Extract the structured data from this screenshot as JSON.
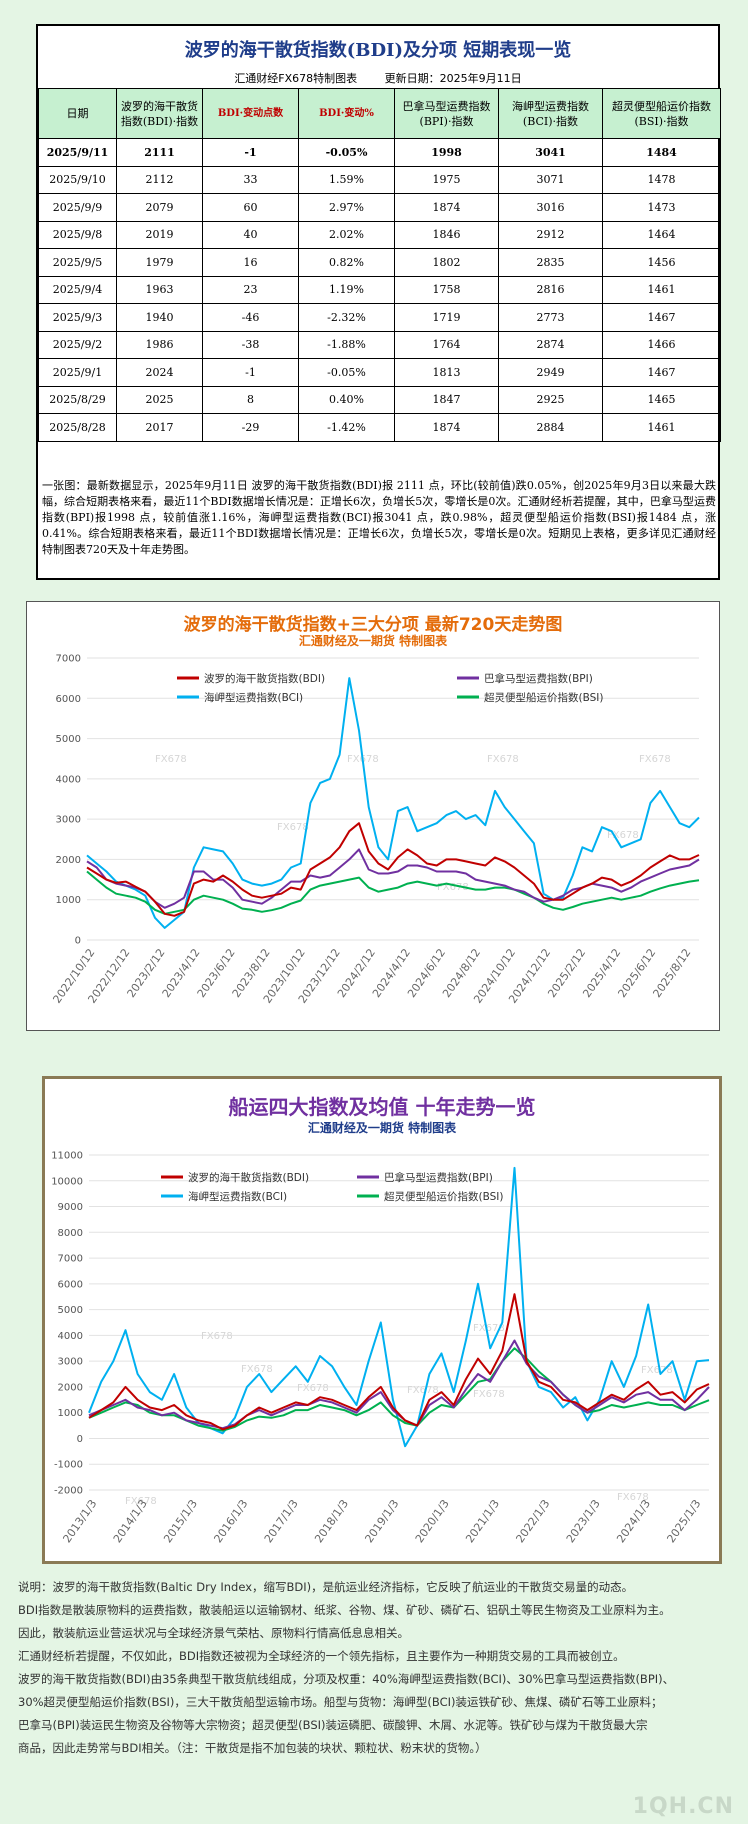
{
  "table_panel": {
    "title": "波罗的海干散货指数(BDI)及分项 短期表现一览",
    "subtitle_left": "汇通财经FX678特制图表",
    "subtitle_right": "更新日期：2025年9月11日",
    "headers": [
      "日期",
      "波罗的海干散货指数(BDI)·指数",
      "BDI·变动点数",
      "BDI·变动%",
      "巴拿马型运费指数(BPI)·指数",
      "海岬型运费指数(BCI)·指数",
      "超灵便型船运价指数(BSI)·指数"
    ],
    "rows": [
      [
        "2025/9/11",
        "2111",
        "-1",
        "-0.05%",
        "1998",
        "3041",
        "1484"
      ],
      [
        "2025/9/10",
        "2112",
        "33",
        "1.59%",
        "1975",
        "3071",
        "1478"
      ],
      [
        "2025/9/9",
        "2079",
        "60",
        "2.97%",
        "1874",
        "3016",
        "1473"
      ],
      [
        "2025/9/8",
        "2019",
        "40",
        "2.02%",
        "1846",
        "2912",
        "1464"
      ],
      [
        "2025/9/5",
        "1979",
        "16",
        "0.82%",
        "1802",
        "2835",
        "1456"
      ],
      [
        "2025/9/4",
        "1963",
        "23",
        "1.19%",
        "1758",
        "2816",
        "1461"
      ],
      [
        "2025/9/3",
        "1940",
        "-46",
        "-2.32%",
        "1719",
        "2773",
        "1467"
      ],
      [
        "2025/9/2",
        "1986",
        "-38",
        "-1.88%",
        "1764",
        "2874",
        "1466"
      ],
      [
        "2025/9/1",
        "2024",
        "-1",
        "-0.05%",
        "1813",
        "2949",
        "1467"
      ],
      [
        "2025/8/29",
        "2025",
        "8",
        "0.40%",
        "1847",
        "2925",
        "1465"
      ],
      [
        "2025/8/28",
        "2017",
        "-29",
        "-1.42%",
        "1874",
        "2884",
        "1461"
      ]
    ],
    "note": "一张图：最新数据显示，2025年9月11日 波罗的海干散货指数(BDI)报 2111 点，环比(较前值)跌0.05%，创2025年9月3日以来最大跌幅，综合短期表格来看，最近11个BDI数据增长情况是：正增长6次，负增长5次，零增长是0次。汇通财经析若提醒，其中，巴拿马型运费指数(BPI)报1998 点，较前值涨1.16%，海岬型运费指数(BCI)报3041 点，跌0.98%，超灵便型船运价指数(BSI)报1484 点，涨0.41%。综合短期表格来看，最近11个BDI数据增长情况是：正增长6次，负增长5次，零增长是0次。短期见上表格，更多详见汇通财经特制图表720天及十年走势图。"
  },
  "chart_data": [
    {
      "type": "line",
      "title": "波罗的海干散货指数+三大分项 最新720天走势图",
      "subtitle": "汇通财经及一期货 特制图表",
      "watermark": "FX678",
      "ylim": [
        0,
        7000
      ],
      "yticks": [
        0,
        1000,
        2000,
        3000,
        4000,
        5000,
        6000,
        7000
      ],
      "grid": true,
      "legend_position": "top",
      "x_tick_labels": [
        "2022/10/12",
        "2022/12/12",
        "2023/2/12",
        "2023/4/12",
        "2023/6/12",
        "2023/8/12",
        "2023/10/12",
        "2023/12/12",
        "2024/2/12",
        "2024/4/12",
        "2024/6/12",
        "2024/8/12",
        "2024/10/12",
        "2024/12/12",
        "2025/2/12",
        "2025/4/12",
        "2025/6/12",
        "2025/8/12"
      ],
      "colors": {
        "BDI": "#c00000",
        "BPI": "#7030a0",
        "BCI": "#00b0f0",
        "BSI": "#00b050"
      },
      "series": [
        {
          "name": "波罗的海干散货指数(BDI)",
          "key": "BDI",
          "values": [
            1800,
            1650,
            1500,
            1420,
            1450,
            1320,
            1200,
            950,
            650,
            600,
            700,
            1400,
            1500,
            1450,
            1600,
            1450,
            1250,
            1100,
            1050,
            1100,
            1150,
            1300,
            1250,
            1750,
            1900,
            2050,
            2300,
            2700,
            2900,
            2200,
            1900,
            1750,
            2050,
            2250,
            2100,
            1900,
            1850,
            2000,
            2000,
            1950,
            1900,
            1850,
            2050,
            1950,
            1800,
            1600,
            1400,
            1050,
            1000,
            1000,
            1150,
            1300,
            1400,
            1550,
            1500,
            1350,
            1450,
            1600,
            1800,
            1950,
            2100,
            2000,
            2000,
            2111
          ]
        },
        {
          "name": "巴拿马型运费指数(BPI)",
          "key": "BPI",
          "values": [
            1950,
            1800,
            1500,
            1400,
            1350,
            1300,
            1200,
            950,
            800,
            900,
            1050,
            1700,
            1700,
            1500,
            1500,
            1300,
            1000,
            950,
            900,
            1050,
            1250,
            1450,
            1450,
            1600,
            1550,
            1600,
            1800,
            2000,
            2250,
            1750,
            1650,
            1650,
            1700,
            1850,
            1850,
            1800,
            1700,
            1700,
            1700,
            1650,
            1500,
            1450,
            1400,
            1350,
            1250,
            1200,
            1050,
            950,
            1000,
            1100,
            1250,
            1300,
            1400,
            1350,
            1300,
            1200,
            1300,
            1450,
            1550,
            1650,
            1750,
            1800,
            1850,
            1998
          ]
        },
        {
          "name": "海岬型运费指数(BCI)",
          "key": "BCI",
          "values": [
            2100,
            1900,
            1700,
            1450,
            1350,
            1250,
            1100,
            550,
            300,
            500,
            700,
            1800,
            2300,
            2250,
            2200,
            1900,
            1500,
            1400,
            1350,
            1400,
            1500,
            1800,
            1900,
            3400,
            3900,
            4000,
            4600,
            6500,
            5200,
            3300,
            2300,
            2000,
            3200,
            3300,
            2700,
            2800,
            2900,
            3100,
            3200,
            3000,
            3100,
            2850,
            3700,
            3300,
            3000,
            2700,
            2400,
            1150,
            1000,
            1050,
            1600,
            2300,
            2200,
            2800,
            2700,
            2300,
            2400,
            2500,
            3400,
            3700,
            3300,
            2900,
            2800,
            3041
          ]
        },
        {
          "name": "超灵便型船运价指数(BSI)",
          "key": "BSI",
          "values": [
            1700,
            1500,
            1300,
            1150,
            1100,
            1050,
            950,
            750,
            650,
            700,
            750,
            1000,
            1100,
            1050,
            1000,
            900,
            780,
            750,
            700,
            740,
            800,
            900,
            980,
            1250,
            1350,
            1400,
            1450,
            1500,
            1550,
            1300,
            1200,
            1250,
            1300,
            1400,
            1450,
            1400,
            1350,
            1400,
            1350,
            1300,
            1250,
            1250,
            1300,
            1300,
            1250,
            1150,
            1050,
            900,
            800,
            750,
            820,
            900,
            950,
            1000,
            1050,
            1000,
            1050,
            1100,
            1200,
            1280,
            1350,
            1400,
            1450,
            1484
          ]
        }
      ]
    },
    {
      "type": "line",
      "title": "船运四大指数及均值 十年走势一览",
      "subtitle": "汇通财经及一期货 特制图表",
      "watermark": "FX678",
      "ylim": [
        -2000,
        11000
      ],
      "yticks": [
        -2000,
        -1000,
        0,
        1000,
        2000,
        3000,
        4000,
        5000,
        6000,
        7000,
        8000,
        9000,
        10000,
        11000
      ],
      "grid": true,
      "legend_position": "top",
      "x_tick_labels": [
        "2013/1/3",
        "2014/1/3",
        "2015/1/3",
        "2016/1/3",
        "2017/1/3",
        "2018/1/3",
        "2019/1/3",
        "2020/1/3",
        "2021/1/3",
        "2022/1/3",
        "2023/1/3",
        "2024/1/3",
        "2025/1/3"
      ],
      "colors": {
        "BDI": "#c00000",
        "BPI": "#7030a0",
        "BCI": "#00b0f0",
        "BSI": "#00b050"
      },
      "series": [
        {
          "name": "波罗的海干散货指数(BDI)",
          "key": "BDI",
          "values": [
            800,
            1100,
            1400,
            2000,
            1500,
            1200,
            1100,
            1300,
            900,
            700,
            600,
            350,
            500,
            900,
            1200,
            1000,
            1200,
            1400,
            1300,
            1600,
            1500,
            1300,
            1100,
            1600,
            2000,
            1200,
            700,
            500,
            1500,
            1800,
            1300,
            2300,
            3100,
            2500,
            3400,
            5600,
            3000,
            2200,
            2000,
            1500,
            1400,
            1100,
            1400,
            1700,
            1500,
            1900,
            2200,
            1700,
            1800,
            1400,
            1900,
            2111
          ]
        },
        {
          "name": "巴拿马型运费指数(BPI)",
          "key": "BPI",
          "values": [
            900,
            1100,
            1300,
            1500,
            1200,
            1100,
            900,
            1000,
            700,
            600,
            500,
            400,
            550,
            900,
            1100,
            900,
            1100,
            1300,
            1300,
            1500,
            1400,
            1200,
            1000,
            1500,
            1800,
            1100,
            700,
            500,
            1300,
            1600,
            1200,
            1900,
            2500,
            2200,
            3000,
            3800,
            2900,
            2400,
            2200,
            1700,
            1300,
            1000,
            1300,
            1600,
            1400,
            1700,
            1800,
            1500,
            1500,
            1100,
            1500,
            1998
          ]
        },
        {
          "name": "海岬型运费指数(BCI)",
          "key": "BCI",
          "values": [
            1000,
            2200,
            3000,
            4200,
            2500,
            1800,
            1500,
            2500,
            1200,
            600,
            400,
            200,
            800,
            2000,
            2500,
            1800,
            2300,
            2800,
            2200,
            3200,
            2800,
            2000,
            1300,
            3000,
            4500,
            1500,
            -300,
            500,
            2500,
            3300,
            1800,
            3800,
            6000,
            3500,
            4500,
            10500,
            3000,
            2000,
            1800,
            1200,
            1600,
            700,
            1500,
            3000,
            2000,
            3200,
            5200,
            2500,
            3000,
            1500,
            3000,
            3041
          ]
        },
        {
          "name": "超灵便型船运价指数(BSI)",
          "key": "BSI",
          "values": [
            800,
            1000,
            1200,
            1400,
            1300,
            1000,
            900,
            900,
            700,
            500,
            400,
            300,
            450,
            700,
            850,
            800,
            900,
            1100,
            1100,
            1300,
            1200,
            1100,
            900,
            1100,
            1400,
            900,
            600,
            500,
            1000,
            1300,
            1200,
            1700,
            2200,
            2300,
            3000,
            3500,
            3100,
            2600,
            2200,
            1700,
            1300,
            1000,
            1100,
            1300,
            1200,
            1300,
            1400,
            1300,
            1300,
            1100,
            1300,
            1484
          ]
        }
      ]
    }
  ],
  "description": [
    "说明：波罗的海干散货指数(Baltic Dry Index，缩写BDI)，是航运业经济指标，它反映了航运业的干散货交易量的动态。",
    "BDI指数是散装原物料的运费指数，散装船运以运输钢材、纸浆、谷物、煤、矿砂、磷矿石、铝矾土等民生物资及工业原料为主。",
    "因此，散装航运业营运状况与全球经济景气荣枯、原物料行情高低息息相关。",
    "汇通财经析若提醒，不仅如此，BDI指数还被视为全球经济的一个领先指标，且主要作为一种期货交易的工具而被创立。",
    "波罗的海干散货指数(BDI)由35条典型干散货航线组成，分项及权重：40%海岬型运费指数(BCI)、30%巴拿马型运费指数(BPI)、",
    "30%超灵便型船运价指数(BSI)，三大干散货船型运输市场。船型与货物：海岬型(BCI)装运铁矿砂、焦煤、磷矿石等工业原料；",
    "巴拿马(BPI)装运民生物资及谷物等大宗物资；超灵便型(BSI)装运磷肥、碳酸钾、木屑、水泥等。铁矿砂与煤为干散货最大宗",
    "商品，因此走势常与BDI相关。（注：干散货是指不加包装的块状、颗粒状、粉末状的货物。）"
  ],
  "site_watermark": "1QH.CN"
}
